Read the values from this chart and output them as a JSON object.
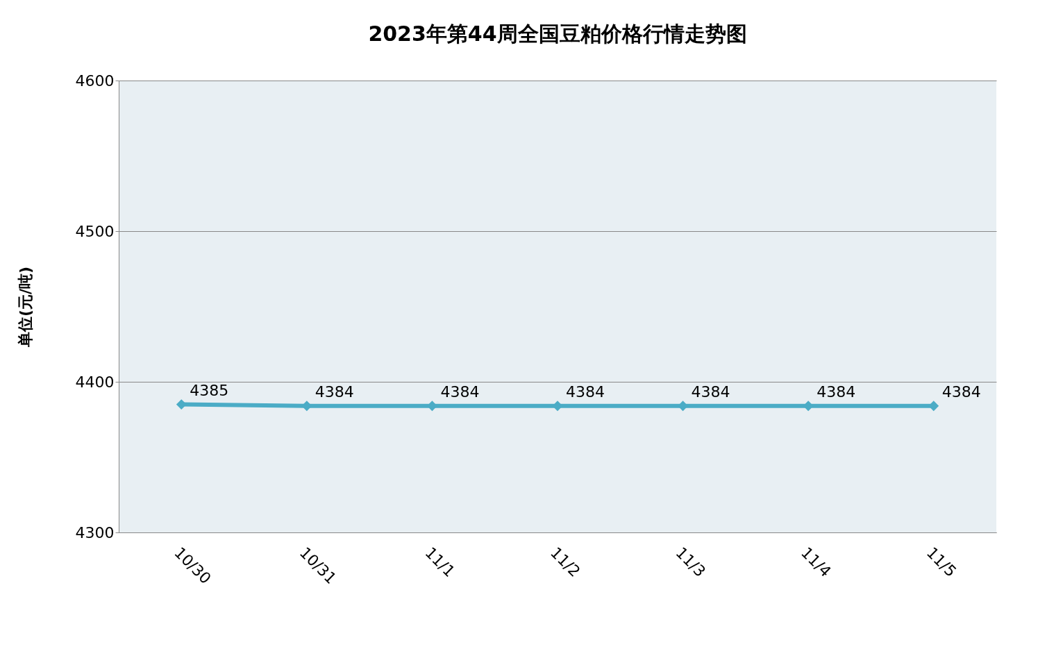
{
  "chart_data": {
    "type": "line",
    "title": "2023年第44周全国豆粕价格行情走势图",
    "ylabel": "单位(元/吨)",
    "categories": [
      "10/30",
      "10/31",
      "11/1",
      "11/2",
      "11/3",
      "11/4",
      "11/5"
    ],
    "series": [
      {
        "color": "#4bacc6",
        "values": [
          4385,
          4384,
          4384,
          4384,
          4384,
          4384,
          4384
        ]
      }
    ],
    "ylim": [
      4300,
      4600
    ],
    "yticks": [
      4300,
      4400,
      4500,
      4600
    ],
    "grid": "y",
    "marker": "diamond",
    "line_style": "solid",
    "data_labels": true,
    "legend": false
  }
}
